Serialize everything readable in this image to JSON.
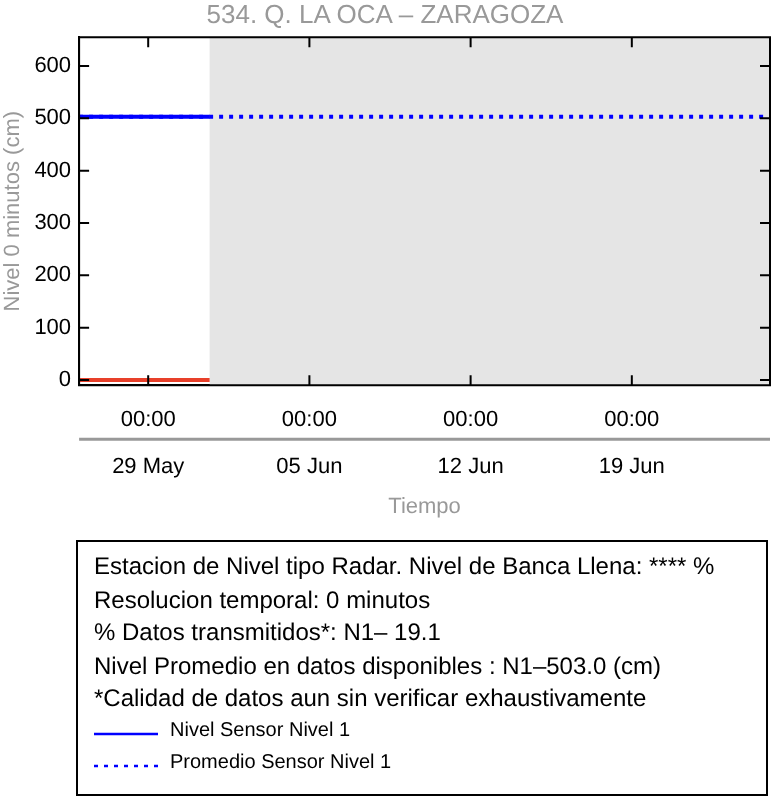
{
  "chart_data": {
    "type": "line",
    "title": "534. Q. LA OCA – ZARAGOZA",
    "xlabel": "Tiempo",
    "ylabel": "Nivel 0 minutos (cm)",
    "xlim": [
      "--05-26",
      "--06-25"
    ],
    "xticks": [
      {
        "value": "--05-29",
        "label": "00:00\n29 May"
      },
      {
        "value": "--06-05",
        "label": "00:00\n05 Jun"
      },
      {
        "value": "--06-12",
        "label": "00:00\n12 Jun"
      },
      {
        "value": "--06-19",
        "label": "00:00\n19 Jun"
      }
    ],
    "ylim": [
      -10,
      655
    ],
    "yticks": [
      0,
      100,
      200,
      300,
      400,
      500,
      600
    ],
    "grid": false,
    "legend": "bottom",
    "marker": "none",
    "series": [
      {
        "name": "Nivel Sensor Nivel 1",
        "color": "#0000ff",
        "line_style": "solid",
        "x": [
          "--05-26",
          "--05-31T16:00"
        ],
        "values": [
          503,
          503
        ]
      },
      {
        "name": "Promedio Sensor Nivel 1",
        "color": "#0000ff",
        "line_style": "dotted",
        "x": [
          "--05-26",
          "--06-25"
        ],
        "values": [
          503,
          503
        ]
      },
      {
        "color": "#e8402a",
        "line_style": "solid",
        "x": [
          "--05-26",
          "--05-31T16:00"
        ],
        "values": [
          0,
          0
        ]
      }
    ],
    "bands": [
      {
        "axis": "x",
        "from": "--05-31T16:00",
        "to": "--06-25",
        "color": "#e5e5e5"
      }
    ],
    "annotations": [
      "Estacion de Nivel tipo Radar. Nivel de Banca Llena: **** %",
      "Resolucion temporal: 0 minutos",
      "% Datos transmitidos*: N1– 19.1",
      "Nivel Promedio en datos disponibles : N1–503.0 (cm)",
      "*Calidad de datos aun sin verificar exhaustivamente"
    ]
  }
}
